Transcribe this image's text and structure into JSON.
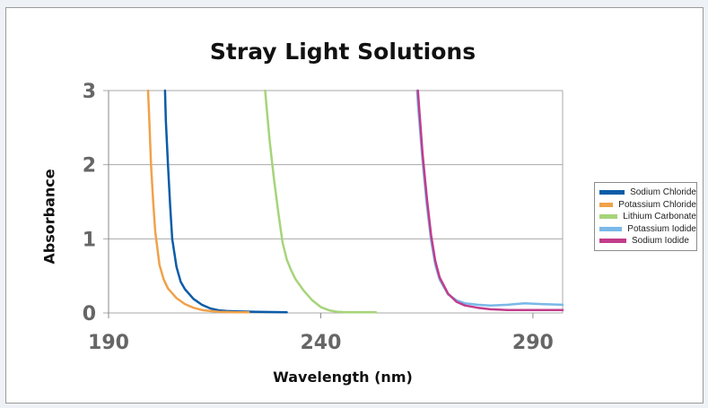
{
  "chart_data": {
    "type": "line",
    "title": "Stray Light Solutions",
    "xlabel": "Wavelength (nm)",
    "ylabel": "Absorbance",
    "xlim": [
      190,
      297
    ],
    "ylim": [
      0,
      3
    ],
    "xticks": [
      "190",
      "240",
      "290"
    ],
    "yticks": [
      "0",
      "1",
      "2",
      "3"
    ],
    "grid": "horizontal",
    "legend_position": "right",
    "series": [
      {
        "name": "Sodium Chloride",
        "color": "#0b5ca8",
        "x": [
          203.3,
          203.5,
          204.0,
          204.5,
          205.0,
          206.0,
          207.0,
          208.0,
          210.0,
          212.0,
          214.0,
          216.0,
          218.0,
          220.0,
          225.0,
          232.0
        ],
        "y": [
          3.0,
          2.6,
          2.0,
          1.45,
          1.0,
          0.62,
          0.42,
          0.32,
          0.19,
          0.11,
          0.06,
          0.035,
          0.025,
          0.02,
          0.015,
          0.01
        ]
      },
      {
        "name": "Potassium Chloride",
        "color": "#f0a24a",
        "x": [
          199.3,
          199.6,
          200.0,
          200.5,
          201.0,
          202.0,
          203.0,
          204.0,
          206.0,
          208.0,
          210.0,
          212.0,
          214.0,
          216.0,
          220.0,
          223.0
        ],
        "y": [
          3.0,
          2.6,
          2.0,
          1.5,
          1.1,
          0.65,
          0.45,
          0.33,
          0.2,
          0.12,
          0.07,
          0.04,
          0.025,
          0.015,
          0.01,
          0.01
        ]
      },
      {
        "name": "Lithium Carbonate",
        "color": "#a6d47a",
        "x": [
          226.9,
          227.2,
          228.0,
          229.0,
          230.0,
          231.0,
          232.0,
          233.0,
          234.0,
          236.0,
          238.0,
          240.0,
          242.0,
          244.0,
          246.0,
          250.0,
          253.0
        ],
        "y": [
          3.0,
          2.8,
          2.3,
          1.8,
          1.35,
          0.95,
          0.72,
          0.58,
          0.46,
          0.3,
          0.17,
          0.08,
          0.035,
          0.015,
          0.01,
          0.01,
          0.01
        ]
      },
      {
        "name": "Potassium Iodide",
        "color": "#7ab8e8",
        "x": [
          262.7,
          263.0,
          264.0,
          265.0,
          266.0,
          267.0,
          268.0,
          270.0,
          272.0,
          274.0,
          277.0,
          280.0,
          284.0,
          288.0,
          292.0,
          297.0
        ],
        "y": [
          3.0,
          2.75,
          2.05,
          1.45,
          0.98,
          0.65,
          0.45,
          0.25,
          0.17,
          0.13,
          0.11,
          0.1,
          0.11,
          0.13,
          0.12,
          0.11
        ]
      },
      {
        "name": "Sodium Iodide",
        "color": "#c23c8c",
        "x": [
          262.9,
          263.2,
          264.0,
          265.0,
          266.0,
          267.0,
          268.0,
          270.0,
          272.0,
          274.0,
          277.0,
          280.0,
          284.0,
          290.0,
          297.0
        ],
        "y": [
          3.0,
          2.75,
          2.15,
          1.55,
          1.05,
          0.7,
          0.48,
          0.26,
          0.15,
          0.1,
          0.07,
          0.05,
          0.04,
          0.04,
          0.04
        ]
      }
    ]
  }
}
